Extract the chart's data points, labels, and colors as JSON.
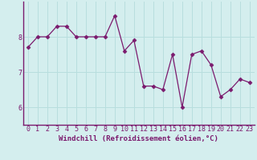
{
  "x": [
    0,
    1,
    2,
    3,
    4,
    5,
    6,
    7,
    8,
    9,
    10,
    11,
    12,
    13,
    14,
    15,
    16,
    17,
    18,
    19,
    20,
    21,
    22,
    23
  ],
  "y": [
    7.7,
    8.0,
    8.0,
    8.3,
    8.3,
    8.0,
    8.0,
    8.0,
    8.0,
    8.6,
    7.6,
    7.9,
    6.6,
    6.6,
    6.5,
    7.5,
    6.0,
    7.5,
    7.6,
    7.2,
    6.3,
    6.5,
    6.8,
    6.7
  ],
  "line_color": "#7b1a6e",
  "marker": "D",
  "marker_size": 2.5,
  "bg_color": "#d4eeee",
  "grid_color": "#b8dede",
  "axis_color": "#7b1a6e",
  "spine_color": "#7b1a6e",
  "xlabel": "Windchill (Refroidissement éolien,°C)",
  "xlabel_fontsize": 6.5,
  "tick_fontsize": 6,
  "ylim": [
    5.5,
    9.0
  ],
  "xlim": [
    -0.5,
    23.5
  ],
  "yticks": [
    6,
    7,
    8
  ],
  "xticks": [
    0,
    1,
    2,
    3,
    4,
    5,
    6,
    7,
    8,
    9,
    10,
    11,
    12,
    13,
    14,
    15,
    16,
    17,
    18,
    19,
    20,
    21,
    22,
    23
  ]
}
